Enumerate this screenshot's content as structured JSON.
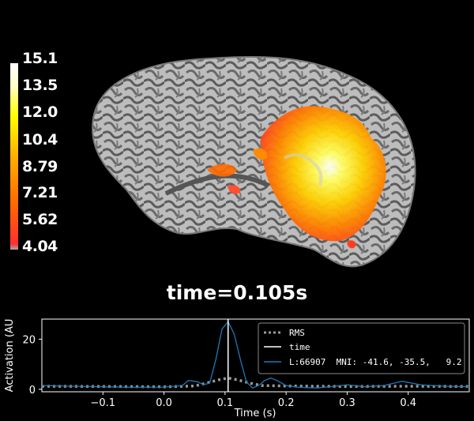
{
  "colorbar": {
    "ticks": [
      "15.1",
      "13.5",
      "12.0",
      "10.4",
      "8.79",
      "7.21",
      "5.62",
      "4.04"
    ],
    "colors": [
      "#aaaaaa",
      "#ff3030",
      "#ff6a00",
      "#ffb000",
      "#ffff00",
      "#ffffff"
    ]
  },
  "time_label": "time=0.105s",
  "chart_data": {
    "type": "line",
    "xlabel": "Time (s)",
    "ylabel": "Activation (AU",
    "xlim": [
      -0.2,
      0.5
    ],
    "ylim": [
      -1,
      28
    ],
    "xticks": [
      "−0.1",
      "0.0",
      "0.1",
      "0.2",
      "0.3",
      "0.4"
    ],
    "xtick_values": [
      -0.1,
      0.0,
      0.1,
      0.2,
      0.3,
      0.4
    ],
    "yticks": [
      "0",
      "20"
    ],
    "ytick_values": [
      0,
      20
    ],
    "current_time": 0.105,
    "legend": {
      "placement": "top-right",
      "rms": "RMS",
      "time": "time",
      "vertex": "L:66907  MNI: -41.6, -35.5,   9.2"
    },
    "series": [
      {
        "name": "L:66907  MNI: -41.6, -35.5,   9.2",
        "color": "#1f77b4",
        "x": [
          -0.2,
          -0.15,
          -0.1,
          -0.05,
          0.0,
          0.03,
          0.04,
          0.055,
          0.065,
          0.075,
          0.085,
          0.095,
          0.105,
          0.115,
          0.125,
          0.135,
          0.145,
          0.155,
          0.165,
          0.175,
          0.185,
          0.2,
          0.22,
          0.25,
          0.28,
          0.3,
          0.33,
          0.36,
          0.39,
          0.42,
          0.46,
          0.5
        ],
        "y": [
          1.5,
          1.2,
          1.0,
          0.8,
          0.9,
          1.5,
          3.5,
          3.0,
          1.8,
          2.5,
          12,
          24,
          27,
          22,
          12,
          3,
          0.5,
          1.5,
          3.5,
          4.5,
          3.5,
          1.5,
          0.8,
          0.5,
          1.2,
          1.8,
          1.0,
          1.5,
          3.2,
          1.8,
          1.2,
          1.0
        ]
      },
      {
        "name": "RMS",
        "color": "#999999",
        "x": [
          -0.2,
          -0.1,
          0.0,
          0.05,
          0.07,
          0.09,
          0.105,
          0.12,
          0.14,
          0.16,
          0.2,
          0.3,
          0.4,
          0.5
        ],
        "y": [
          1.2,
          1.1,
          1.0,
          1.3,
          2.5,
          3.8,
          4.5,
          3.8,
          2.5,
          1.5,
          1.3,
          1.1,
          1.2,
          1.1
        ]
      }
    ]
  }
}
